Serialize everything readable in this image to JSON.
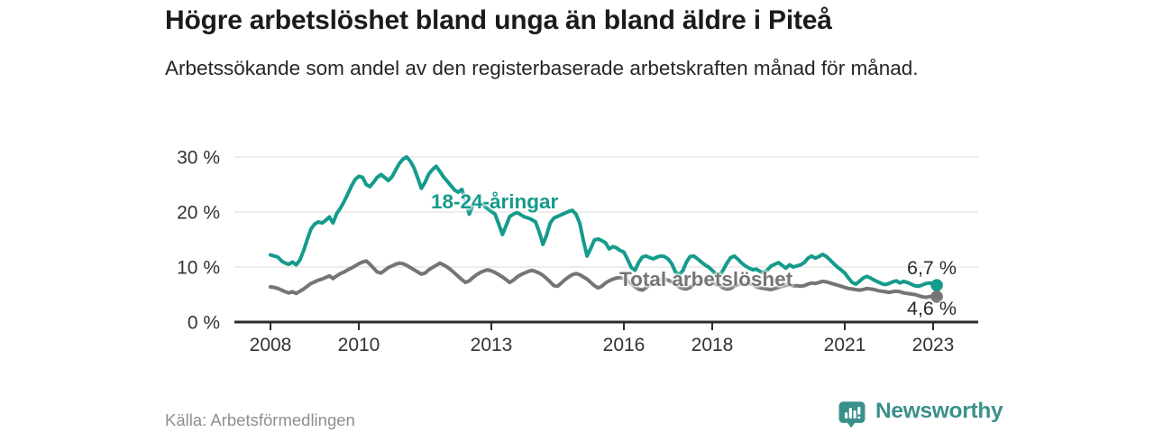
{
  "header": {
    "title": "Högre arbetslöshet bland unga än bland äldre i Piteå",
    "subtitle": "Arbetssökande som andel av den registerbaserade arbetskraften månad för månad."
  },
  "footer": {
    "source": "Källa: Arbetsförmedlingen",
    "brand": "Newsworthy",
    "brand_icon": "bubble-bar-chart-icon"
  },
  "colors": {
    "youth_line": "#149b8c",
    "total_line": "#757575",
    "axis": "#2b2b2b",
    "grid": "#e2e2e2",
    "tick_text": "#333333",
    "end_label_text": "#2b2b2b",
    "brand": "#3a918a"
  },
  "chart_data": {
    "type": "line",
    "title": "Högre arbetslöshet bland unga än bland äldre i Piteå",
    "subtitle": "Arbetssökande som andel av den registerbaserade arbetskraften månad för månad.",
    "source": "Källa: Arbetsförmedlingen",
    "grid": true,
    "legend_position": "inline-annotations",
    "start_year": 2008,
    "points_per_year": 12,
    "ylim": [
      0,
      31
    ],
    "y_ticks": [
      {
        "value": 0,
        "label": "0 %"
      },
      {
        "value": 10,
        "label": "10 %"
      },
      {
        "value": 20,
        "label": "20 %"
      },
      {
        "value": 30,
        "label": "30 %"
      }
    ],
    "x_ticks": [
      {
        "value": 2008,
        "label": "2008"
      },
      {
        "value": 2010,
        "label": "2010"
      },
      {
        "value": 2013,
        "label": "2013"
      },
      {
        "value": 2016,
        "label": "2016"
      },
      {
        "value": 2018,
        "label": "2018"
      },
      {
        "value": 2021,
        "label": "2021"
      },
      {
        "value": 2023,
        "label": "2023"
      }
    ],
    "series": [
      {
        "name": "18-24-åringar",
        "color": "#149b8c",
        "end_label": "6,7 %",
        "end_value": 6.7,
        "values": [
          12.2,
          12.0,
          11.8,
          11.1,
          10.7,
          10.5,
          10.9,
          10.4,
          11.3,
          13.0,
          15.0,
          16.9,
          17.8,
          18.2,
          18.0,
          18.5,
          19.1,
          18.0,
          19.7,
          20.7,
          21.9,
          23.3,
          24.7,
          25.9,
          26.5,
          26.3,
          25.0,
          24.6,
          25.4,
          26.3,
          26.8,
          26.3,
          25.7,
          26.4,
          27.6,
          28.8,
          29.6,
          30.0,
          29.2,
          28.0,
          26.2,
          24.3,
          25.4,
          26.9,
          27.7,
          28.3,
          27.4,
          26.4,
          25.6,
          24.8,
          24.0,
          23.6,
          24.1,
          22.0,
          19.6,
          21.3,
          22.1,
          21.8,
          21.1,
          20.6,
          20.1,
          19.6,
          17.8,
          15.9,
          17.5,
          19.2,
          19.6,
          19.9,
          19.5,
          19.1,
          18.9,
          18.6,
          18.2,
          16.4,
          14.1,
          15.8,
          18.0,
          18.9,
          19.2,
          19.5,
          19.8,
          20.1,
          20.3,
          19.6,
          18.0,
          14.8,
          12.0,
          13.4,
          14.9,
          15.1,
          14.8,
          14.4,
          13.3,
          13.7,
          13.5,
          13.0,
          12.7,
          11.4,
          9.9,
          9.4,
          10.8,
          11.8,
          12.0,
          11.7,
          11.5,
          11.8,
          12.0,
          11.9,
          11.5,
          10.6,
          9.1,
          8.6,
          9.3,
          10.9,
          11.9,
          12.0,
          11.5,
          10.9,
          10.4,
          10.0,
          9.4,
          8.7,
          8.5,
          9.5,
          10.7,
          11.7,
          12.0,
          11.4,
          10.7,
          10.2,
          9.8,
          9.5,
          9.6,
          9.2,
          9.0,
          9.5,
          10.2,
          10.5,
          10.8,
          10.3,
          9.8,
          10.4,
          10.0,
          10.2,
          10.4,
          10.8,
          11.6,
          12.0,
          11.6,
          11.9,
          12.3,
          11.9,
          11.3,
          10.6,
          10.0,
          9.5,
          8.9,
          8.0,
          7.2,
          6.9,
          7.4,
          8.0,
          8.3,
          8.0,
          7.6,
          7.3,
          7.0,
          6.8,
          7.0,
          7.3,
          7.5,
          7.1,
          7.4,
          7.2,
          6.9,
          6.6,
          6.5,
          6.7,
          7.0,
          7.1,
          6.9,
          6.7
        ]
      },
      {
        "name": "Total arbetslöshet",
        "color": "#757575",
        "end_label": "4,6 %",
        "end_value": 4.6,
        "values": [
          6.4,
          6.3,
          6.1,
          5.8,
          5.5,
          5.3,
          5.5,
          5.2,
          5.6,
          6.0,
          6.5,
          7.0,
          7.3,
          7.6,
          7.8,
          8.1,
          8.4,
          7.9,
          8.4,
          8.8,
          9.1,
          9.5,
          9.8,
          10.2,
          10.6,
          10.9,
          11.1,
          10.5,
          9.8,
          9.1,
          8.9,
          9.4,
          9.9,
          10.2,
          10.5,
          10.7,
          10.6,
          10.3,
          9.9,
          9.5,
          9.1,
          8.7,
          8.9,
          9.5,
          9.9,
          10.3,
          10.7,
          10.4,
          10.0,
          9.5,
          8.9,
          8.3,
          7.7,
          7.2,
          7.5,
          8.1,
          8.6,
          9.0,
          9.3,
          9.5,
          9.3,
          9.0,
          8.6,
          8.2,
          7.7,
          7.2,
          7.6,
          8.2,
          8.6,
          8.9,
          9.2,
          9.4,
          9.2,
          8.9,
          8.5,
          7.9,
          7.3,
          6.6,
          6.5,
          7.1,
          7.7,
          8.2,
          8.6,
          8.8,
          8.6,
          8.2,
          7.8,
          7.2,
          6.6,
          6.2,
          6.5,
          7.1,
          7.5,
          7.8,
          8.0,
          8.1,
          7.9,
          7.5,
          7.0,
          6.4,
          6.0,
          5.8,
          6.2,
          6.8,
          7.2,
          7.5,
          7.7,
          7.8,
          7.6,
          7.3,
          6.9,
          6.4,
          6.1,
          6.0,
          6.3,
          6.8,
          7.1,
          7.3,
          7.4,
          7.3,
          7.1,
          6.9,
          6.6,
          6.2,
          6.0,
          6.1,
          6.5,
          6.8,
          7.0,
          7.1,
          7.0,
          6.9,
          6.4,
          6.2,
          6.1,
          6.0,
          5.9,
          6.1,
          6.3,
          6.5,
          6.7,
          6.7,
          6.6,
          6.6,
          6.5,
          6.6,
          6.9,
          7.1,
          7.0,
          7.2,
          7.4,
          7.3,
          7.1,
          6.9,
          6.7,
          6.5,
          6.3,
          6.1,
          6.0,
          5.9,
          5.8,
          5.9,
          6.1,
          6.0,
          5.9,
          5.7,
          5.6,
          5.5,
          5.4,
          5.5,
          5.6,
          5.5,
          5.3,
          5.2,
          5.1,
          5.0,
          4.8,
          4.6,
          4.5,
          4.6,
          4.7,
          4.6
        ]
      }
    ]
  }
}
